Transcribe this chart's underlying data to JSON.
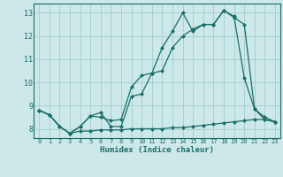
{
  "title": "",
  "xlabel": "Humidex (Indice chaleur)",
  "bg_color": "#cce8e8",
  "grid_color": "#aad0d0",
  "line_color": "#1a6e6a",
  "xlim": [
    -0.5,
    23.5
  ],
  "ylim": [
    7.6,
    13.4
  ],
  "yticks": [
    8,
    9,
    10,
    11,
    12,
    13
  ],
  "xticks": [
    0,
    1,
    2,
    3,
    4,
    5,
    6,
    7,
    8,
    9,
    10,
    11,
    12,
    13,
    14,
    15,
    16,
    17,
    18,
    19,
    20,
    21,
    22,
    23
  ],
  "series1_x": [
    0,
    1,
    2,
    3,
    4,
    5,
    6,
    7,
    8,
    9,
    10,
    11,
    12,
    13,
    14,
    15,
    16,
    17,
    18,
    19,
    20,
    21,
    22,
    23
  ],
  "series1_y": [
    8.8,
    8.6,
    8.1,
    7.8,
    8.1,
    8.55,
    8.5,
    8.35,
    8.4,
    9.8,
    10.3,
    10.4,
    11.5,
    12.2,
    13.0,
    12.2,
    12.5,
    12.5,
    13.1,
    12.85,
    10.2,
    8.85,
    8.5,
    8.3
  ],
  "series2_x": [
    0,
    1,
    2,
    3,
    4,
    5,
    6,
    7,
    8,
    9,
    10,
    11,
    12,
    13,
    14,
    15,
    16,
    17,
    18,
    19,
    20,
    21,
    22,
    23
  ],
  "series2_y": [
    8.8,
    8.6,
    8.1,
    7.8,
    8.1,
    8.55,
    8.7,
    8.1,
    8.1,
    9.4,
    9.5,
    10.4,
    10.5,
    11.5,
    12.0,
    12.3,
    12.5,
    12.5,
    13.1,
    12.8,
    12.5,
    8.85,
    8.4,
    8.3
  ],
  "series3_x": [
    0,
    1,
    2,
    3,
    4,
    5,
    6,
    7,
    8,
    9,
    10,
    11,
    12,
    13,
    14,
    15,
    16,
    17,
    18,
    19,
    20,
    21,
    22,
    23
  ],
  "series3_y": [
    8.8,
    8.6,
    8.1,
    7.8,
    7.9,
    7.9,
    7.95,
    7.95,
    7.95,
    8.0,
    8.0,
    8.0,
    8.0,
    8.05,
    8.05,
    8.1,
    8.15,
    8.2,
    8.25,
    8.3,
    8.35,
    8.4,
    8.4,
    8.3
  ]
}
